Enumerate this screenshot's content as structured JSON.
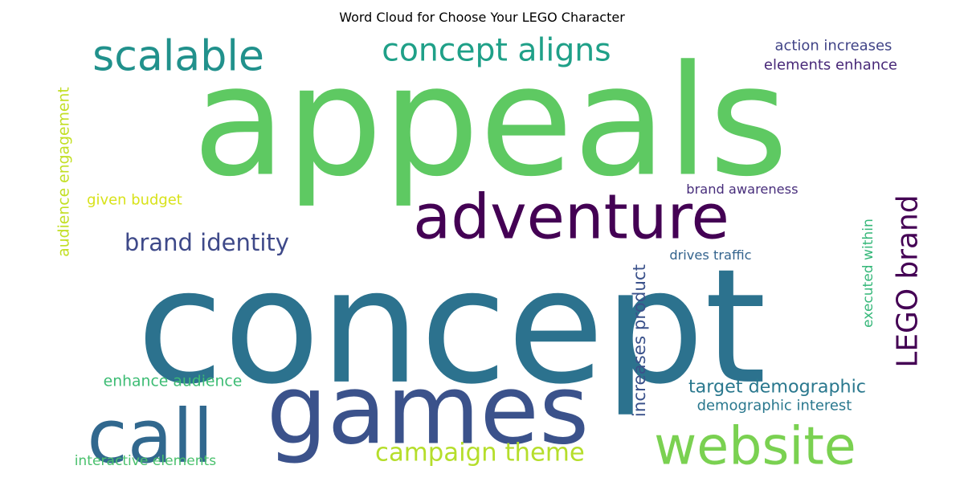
{
  "chart_data": {
    "type": "wordcloud",
    "title": "Word Cloud for Choose Your LEGO Character",
    "words": [
      {
        "text": "appeals",
        "color": "#5ec962"
      },
      {
        "text": "concept",
        "color": "#2c728e"
      },
      {
        "text": "games",
        "color": "#3b528b"
      },
      {
        "text": "adventure",
        "color": "#440154"
      },
      {
        "text": "website",
        "color": "#7ad151"
      },
      {
        "text": "call",
        "color": "#31688e"
      },
      {
        "text": "scalable",
        "color": "#21918c"
      },
      {
        "text": "concept aligns",
        "color": "#1fa088"
      },
      {
        "text": "LEGO brand",
        "color": "#440154"
      },
      {
        "text": "brand identity",
        "color": "#3e4989"
      },
      {
        "text": "campaign theme",
        "color": "#b5de2b"
      },
      {
        "text": "target demographic",
        "color": "#2a788e"
      },
      {
        "text": "action increases",
        "color": "#414487"
      },
      {
        "text": "elements enhance",
        "color": "#482878"
      },
      {
        "text": "brand awareness",
        "color": "#472d7b"
      },
      {
        "text": "drives traffic",
        "color": "#33638d"
      },
      {
        "text": "given budget",
        "color": "#d8e219"
      },
      {
        "text": "audience engagement",
        "color": "#c2df23"
      },
      {
        "text": "executed within",
        "color": "#35b779"
      },
      {
        "text": "increases product",
        "color": "#3b528b"
      },
      {
        "text": "demographic interest",
        "color": "#2a788e"
      },
      {
        "text": "enhance audience",
        "color": "#3dbc74"
      },
      {
        "text": "interactive elements",
        "color": "#4ac16d"
      }
    ]
  }
}
